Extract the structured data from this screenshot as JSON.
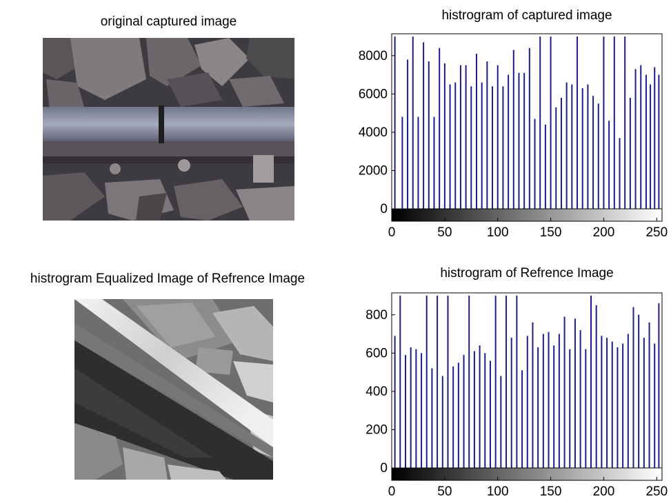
{
  "panels": {
    "top_left_title": "original captured image",
    "bottom_left_title": "histrogram Equalized Image of Refrence Image"
  },
  "chart_data": [
    {
      "type": "bar",
      "title": "histrogram of captured image",
      "xlim": [
        0,
        255
      ],
      "ylim": [
        0,
        9000
      ],
      "xticks": [
        0,
        50,
        100,
        150,
        200,
        250
      ],
      "yticks": [
        0,
        2000,
        4000,
        6000,
        8000
      ],
      "grid": false,
      "colorbar": "grayscale",
      "bar_color": "#1c1c8c",
      "series": [
        {
          "x": [
            3,
            10,
            15,
            20,
            25,
            30,
            35,
            40,
            45,
            50,
            55,
            60,
            65,
            70,
            75,
            80,
            85,
            90,
            95,
            100,
            105,
            110,
            115,
            120,
            125,
            130,
            135,
            140,
            145,
            150,
            155,
            160,
            165,
            170,
            175,
            180,
            185,
            190,
            195,
            200,
            205,
            210,
            215,
            220,
            225,
            230,
            235,
            240,
            244,
            248,
            252
          ],
          "values": [
            9000,
            4800,
            7800,
            9000,
            4800,
            8700,
            7700,
            4800,
            8400,
            7600,
            6500,
            6600,
            7500,
            7500,
            6400,
            8100,
            6600,
            7700,
            6400,
            7500,
            6400,
            7000,
            8300,
            7100,
            7100,
            8400,
            4700,
            9000,
            4400,
            9000,
            5300,
            5800,
            6600,
            6500,
            9000,
            6300,
            6500,
            5900,
            5500,
            9000,
            4600,
            9000,
            3700,
            9000,
            5800,
            7300,
            7500,
            7000,
            6500,
            7400,
            7000
          ]
        }
      ]
    },
    {
      "type": "bar",
      "title": "histrogram of Refrence Image",
      "xlim": [
        0,
        255
      ],
      "ylim": [
        0,
        900
      ],
      "xticks": [
        0,
        50,
        100,
        150,
        200,
        250
      ],
      "yticks": [
        0,
        200,
        400,
        600,
        800
      ],
      "grid": false,
      "colorbar": "grayscale",
      "bar_color": "#1c1c8c",
      "series": [
        {
          "x": [
            3,
            8,
            13,
            18,
            23,
            28,
            33,
            38,
            43,
            48,
            53,
            58,
            63,
            68,
            73,
            78,
            83,
            88,
            93,
            98,
            103,
            108,
            113,
            118,
            123,
            128,
            133,
            138,
            143,
            148,
            153,
            158,
            163,
            168,
            173,
            178,
            183,
            188,
            193,
            198,
            203,
            208,
            213,
            218,
            223,
            228,
            233,
            238,
            243,
            248,
            252
          ],
          "values": [
            690,
            900,
            590,
            630,
            620,
            600,
            900,
            520,
            900,
            480,
            900,
            530,
            550,
            590,
            900,
            610,
            640,
            600,
            560,
            900,
            480,
            900,
            680,
            900,
            510,
            690,
            760,
            630,
            700,
            710,
            640,
            700,
            790,
            620,
            780,
            720,
            620,
            900,
            850,
            690,
            680,
            660,
            630,
            650,
            700,
            840,
            800,
            680,
            760,
            650,
            860
          ]
        }
      ]
    }
  ]
}
